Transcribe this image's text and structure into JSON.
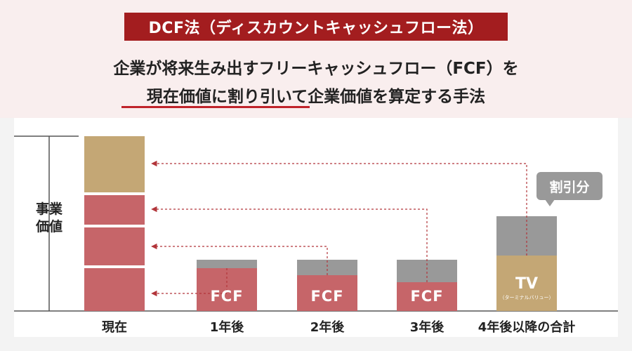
{
  "header": {
    "title": "DCF法（ディスカウントキャッシュフロー法）",
    "lead_line1": "企業が将来生み出すフリーキャッシュフロー（FCF）を",
    "lead_line2": "現在価値に割り引いて企業価値を算定する手法"
  },
  "diagram": {
    "value_label_line1": "事業",
    "value_label_line2": "価値",
    "discount_label": "割引分",
    "tv_label": "TV",
    "tv_sublabel": "（ターミナルバリュー）",
    "periods": [
      {
        "label": "現在"
      },
      {
        "label": "1年後",
        "bar_label": "FCF"
      },
      {
        "label": "2年後",
        "bar_label": "FCF"
      },
      {
        "label": "3年後",
        "bar_label": "FCF"
      },
      {
        "label": "4年後以降の合計"
      }
    ],
    "colors": {
      "fcf": "#c66569",
      "tv": "#c4a775",
      "discount": "#999999",
      "arrow": "#b2353a",
      "axis": "#555555"
    }
  }
}
